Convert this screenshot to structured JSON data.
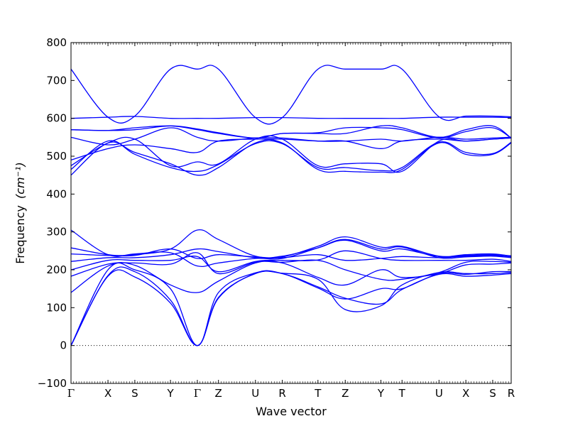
{
  "chart_data": {
    "type": "line",
    "title": "",
    "xlabel": "Wave vector",
    "ylabel": "Frequency",
    "ylabel_unit": "(cm⁻¹)",
    "ylim": [
      -100,
      800
    ],
    "yticks": [
      -100,
      0,
      100,
      200,
      300,
      400,
      500,
      600,
      700,
      800
    ],
    "xlim": [
      0,
      100
    ],
    "xticks": [
      {
        "label": "Γ",
        "x": 0
      },
      {
        "label": "X",
        "x": 8.4
      },
      {
        "label": "S",
        "x": 14.5
      },
      {
        "label": "Y",
        "x": 22.6
      },
      {
        "label": "Γ",
        "x": 28.7
      },
      {
        "label": "Z",
        "x": 33.5
      },
      {
        "label": "U",
        "x": 41.9
      },
      {
        "label": "R",
        "x": 48.0
      },
      {
        "label": "T",
        "x": 56.1
      },
      {
        "label": "Z",
        "x": 62.3
      },
      {
        "label": "Y",
        "x": 70.4
      },
      {
        "label": "T",
        "x": 75.2
      },
      {
        "label": "U",
        "x": 83.6
      },
      {
        "label": "X",
        "x": 89.7
      },
      {
        "label": "S",
        "x": 95.8
      },
      {
        "label": "R",
        "x": 100
      }
    ],
    "zero_line": {
      "y": 0,
      "style": "dotted"
    },
    "grid": false,
    "line_color": "#0000ff",
    "series": [
      {
        "x": [
          0,
          8.4,
          14.5,
          22.6,
          28.7,
          33.5,
          41.9,
          48.0,
          56.1,
          62.3,
          70.4,
          75.2,
          83.6,
          89.7,
          95.8,
          100
        ],
        "y": [
          0,
          183,
          181,
          112,
          0,
          127,
          190,
          190,
          155,
          125,
          110,
          148,
          188,
          183,
          186,
          190
        ]
      },
      {
        "x": [
          0,
          8.4,
          14.5,
          22.6,
          28.7,
          33.5,
          41.9,
          48.0,
          56.1,
          62.3,
          70.4,
          75.2,
          83.6,
          89.7,
          95.8,
          100
        ],
        "y": [
          0,
          185,
          195,
          120,
          0,
          125,
          191,
          190,
          152,
          123,
          150,
          150,
          190,
          188,
          195,
          195
        ]
      },
      {
        "x": [
          0,
          8.4,
          14.5,
          22.6,
          28.7,
          33.5,
          41.9,
          48.0,
          56.1,
          62.3,
          70.4,
          75.2,
          83.6,
          89.7,
          95.8,
          100
        ],
        "y": [
          0,
          200,
          200,
          150,
          0,
          140,
          192,
          191,
          175,
          95,
          105,
          160,
          193,
          190,
          190,
          193
        ]
      },
      {
        "x": [
          0,
          8.4,
          14.5,
          22.6,
          28.7,
          33.5,
          41.9,
          48.0,
          56.1,
          62.3,
          70.4,
          75.2,
          83.6,
          89.7,
          95.8,
          100
        ],
        "y": [
          140,
          210,
          212,
          160,
          140,
          170,
          218,
          218,
          180,
          160,
          200,
          180,
          190,
          213,
          215,
          218
        ]
      },
      {
        "x": [
          0,
          8.4,
          14.5,
          22.6,
          28.7,
          33.5,
          41.9,
          48.0,
          56.1,
          62.3,
          70.4,
          75.2,
          83.6,
          89.7,
          95.8,
          100
        ],
        "y": [
          183,
          215,
          218,
          215,
          245,
          190,
          220,
          220,
          225,
          200,
          175,
          175,
          193,
          220,
          222,
          220
        ]
      },
      {
        "x": [
          0,
          8.4,
          14.5,
          22.6,
          28.7,
          33.5,
          41.9,
          48.0,
          56.1,
          62.3,
          70.4,
          75.2,
          83.6,
          89.7,
          95.8,
          100
        ],
        "y": [
          200,
          225,
          225,
          225,
          235,
          195,
          222,
          225,
          226,
          250,
          230,
          225,
          225,
          225,
          228,
          222
        ]
      },
      {
        "x": [
          0,
          8.4,
          14.5,
          22.6,
          28.7,
          33.5,
          41.9,
          48.0,
          56.1,
          62.3,
          70.4,
          75.2,
          83.6,
          89.7,
          95.8,
          100
        ],
        "y": [
          222,
          232,
          232,
          240,
          255,
          248,
          232,
          232,
          240,
          225,
          230,
          235,
          232,
          236,
          238,
          234
        ]
      },
      {
        "x": [
          0,
          8.4,
          14.5,
          22.6,
          28.7,
          33.5,
          41.9,
          48.0,
          56.1,
          62.3,
          70.4,
          75.2,
          83.6,
          89.7,
          95.8,
          100
        ],
        "y": [
          242,
          238,
          240,
          255,
          305,
          280,
          236,
          236,
          258,
          278,
          250,
          255,
          235,
          238,
          240,
          237
        ]
      },
      {
        "x": [
          0,
          8.4,
          14.5,
          22.6,
          28.7,
          33.5,
          41.9,
          48.0,
          56.1,
          62.3,
          70.4,
          75.2,
          83.6,
          89.7,
          95.8,
          100
        ],
        "y": [
          258,
          240,
          238,
          255,
          230,
          240,
          234,
          234,
          262,
          287,
          260,
          262,
          236,
          240,
          242,
          236
        ]
      },
      {
        "x": [
          0,
          8.4,
          14.5,
          22.6,
          28.7,
          33.5,
          41.9,
          48.0,
          56.1,
          62.3,
          70.4,
          75.2,
          83.6,
          89.7,
          95.8,
          100
        ],
        "y": [
          305,
          240,
          242,
          245,
          210,
          218,
          230,
          230,
          258,
          280,
          255,
          260,
          232,
          234,
          236,
          232
        ]
      },
      {
        "x": [
          0,
          8.4,
          14.5,
          22.6,
          28.7,
          33.5,
          41.9,
          48.0,
          56.1,
          62.3,
          70.4,
          75.2,
          83.6,
          89.7,
          95.8,
          100
        ],
        "y": [
          450,
          535,
          510,
          480,
          450,
          470,
          535,
          535,
          465,
          460,
          458,
          465,
          535,
          505,
          505,
          535
        ]
      },
      {
        "x": [
          0,
          8.4,
          14.5,
          22.6,
          28.7,
          33.5,
          41.9,
          48.0,
          56.1,
          62.3,
          70.4,
          75.2,
          83.6,
          89.7,
          95.8,
          100
        ],
        "y": [
          465,
          540,
          505,
          470,
          460,
          478,
          533,
          533,
          470,
          470,
          462,
          470,
          537,
          510,
          507,
          537
        ]
      },
      {
        "x": [
          0,
          8.4,
          14.5,
          22.6,
          28.7,
          33.5,
          41.9,
          48.0,
          56.1,
          62.3,
          70.4,
          75.2,
          83.6,
          89.7,
          95.8,
          100
        ],
        "y": [
          475,
          535,
          545,
          475,
          485,
          480,
          545,
          545,
          475,
          480,
          480,
          460,
          540,
          540,
          545,
          548
        ]
      },
      {
        "x": [
          0,
          8.4,
          14.5,
          22.6,
          28.7,
          33.5,
          41.9,
          48.0,
          56.1,
          62.3,
          70.4,
          75.2,
          83.6,
          89.7,
          95.8,
          100
        ],
        "y": [
          490,
          520,
          530,
          520,
          510,
          540,
          545,
          545,
          540,
          540,
          520,
          540,
          545,
          540,
          545,
          548
        ]
      },
      {
        "x": [
          0,
          8.4,
          14.5,
          22.6,
          28.7,
          33.5,
          41.9,
          48.0,
          56.1,
          62.3,
          70.4,
          75.2,
          83.6,
          89.7,
          95.8,
          100
        ],
        "y": [
          550,
          530,
          545,
          575,
          550,
          540,
          548,
          548,
          540,
          540,
          545,
          540,
          550,
          545,
          548,
          550
        ]
      },
      {
        "x": [
          0,
          8.4,
          14.5,
          22.6,
          28.7,
          33.5,
          41.9,
          48.0,
          56.1,
          62.3,
          70.4,
          75.2,
          83.6,
          89.7,
          95.8,
          100
        ],
        "y": [
          570,
          568,
          575,
          580,
          570,
          560,
          548,
          560,
          560,
          560,
          580,
          575,
          550,
          570,
          580,
          548
        ]
      },
      {
        "x": [
          0,
          8.4,
          14.5,
          22.6,
          28.7,
          33.5,
          41.9,
          48.0,
          56.1,
          62.3,
          70.4,
          75.2,
          83.6,
          89.7,
          95.8,
          100
        ],
        "y": [
          570,
          568,
          570,
          580,
          572,
          562,
          548,
          560,
          562,
          575,
          575,
          570,
          548,
          565,
          575,
          548
        ]
      },
      {
        "x": [
          0,
          8.4,
          14.5,
          22.6,
          28.7,
          33.5,
          41.9,
          48.0,
          56.1,
          62.3,
          70.4,
          75.2,
          83.6,
          89.7,
          95.8,
          100
        ],
        "y": [
          600,
          603,
          605,
          600,
          600,
          600,
          602,
          602,
          600,
          600,
          600,
          600,
          603,
          603,
          603,
          602
        ]
      },
      {
        "x": [
          0,
          8.4,
          14.5,
          22.6,
          28.7,
          33.5,
          41.9,
          48.0,
          56.1,
          62.3,
          70.4,
          75.2,
          83.6,
          89.7,
          95.8,
          100
        ],
        "y": [
          730,
          603,
          606,
          730,
          730,
          730,
          602,
          602,
          730,
          730,
          730,
          730,
          604,
          606,
          606,
          604
        ]
      }
    ]
  }
}
